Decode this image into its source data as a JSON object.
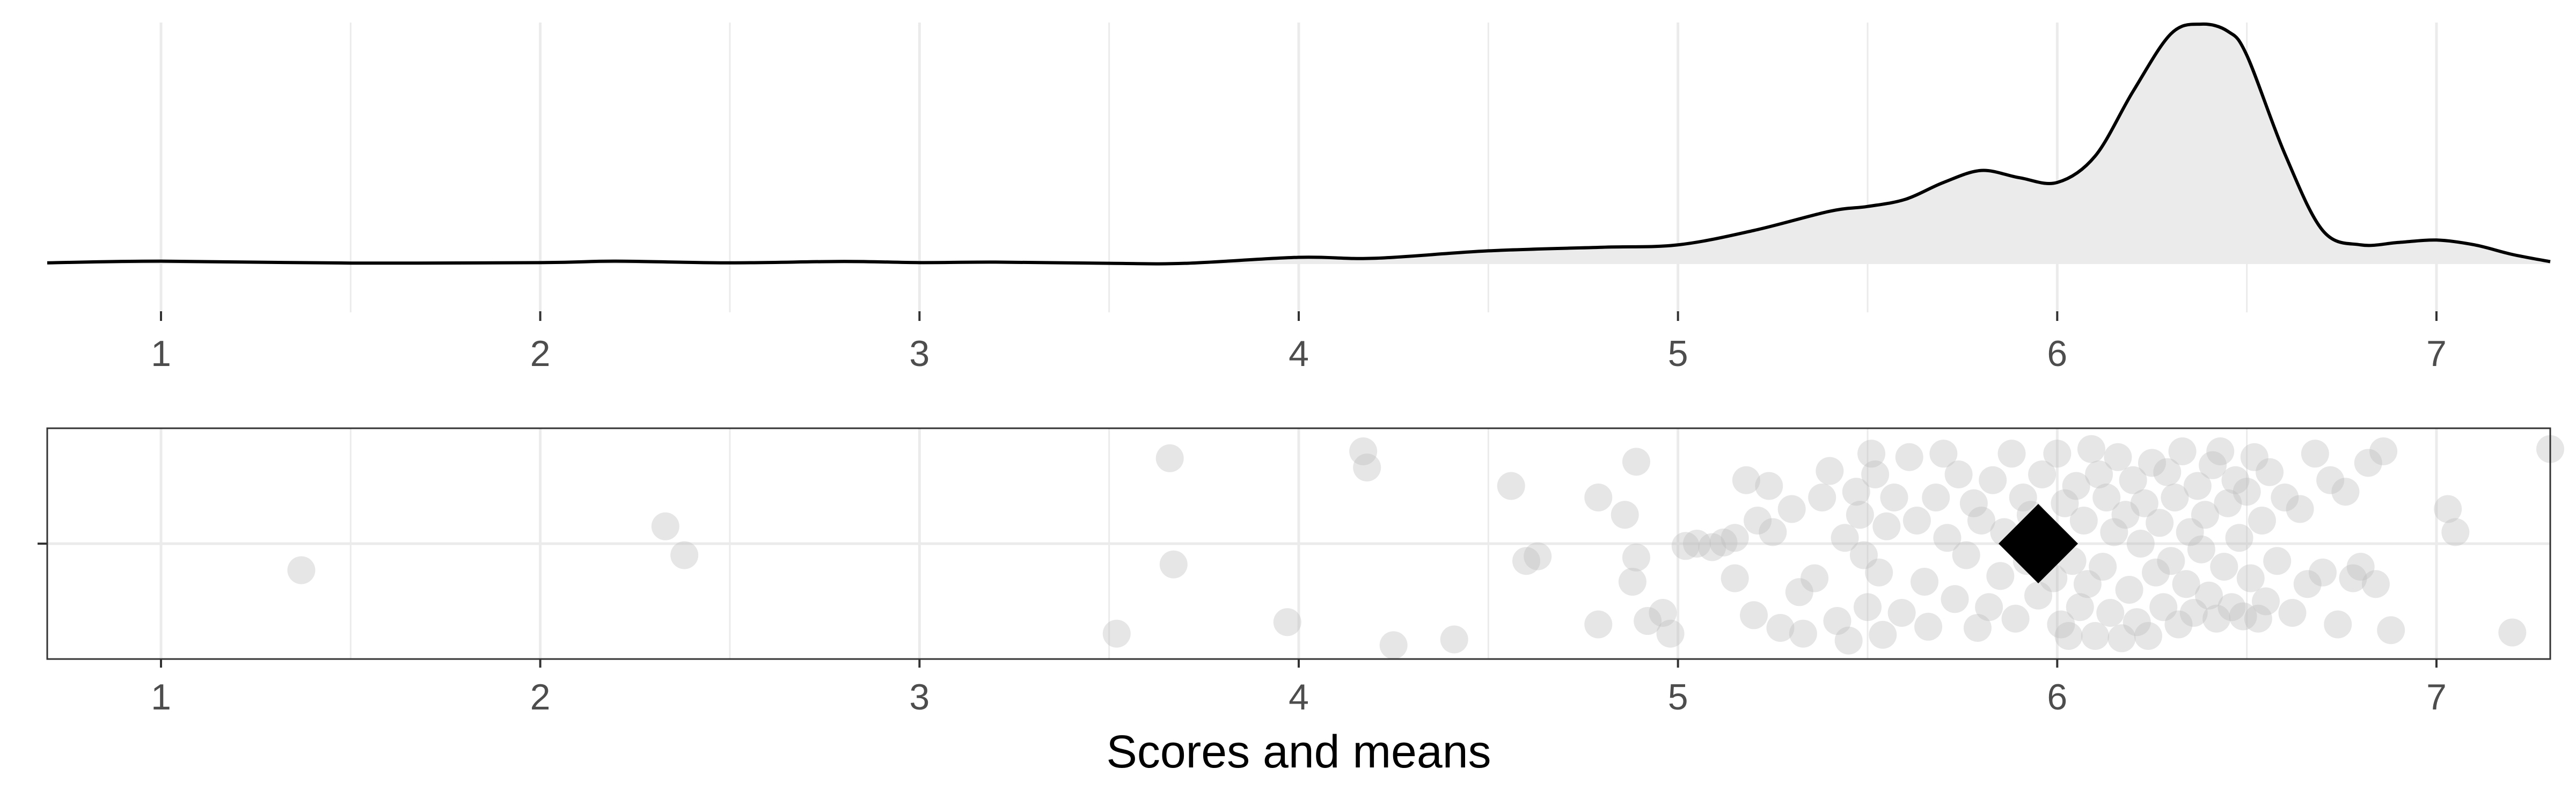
{
  "chart_data": [
    {
      "type": "area",
      "panel": "density",
      "xlim": [
        0.7,
        7.3
      ],
      "x_ticks": [
        1,
        2,
        3,
        4,
        5,
        6,
        7
      ],
      "grid": true,
      "fill_color": "#ebebeb",
      "line_color": "#000000",
      "density": {
        "x": [
          0.7,
          1.0,
          1.5,
          2.0,
          2.2,
          2.5,
          2.8,
          3.0,
          3.2,
          3.5,
          3.7,
          4.0,
          4.2,
          4.5,
          4.8,
          5.0,
          5.2,
          5.4,
          5.5,
          5.6,
          5.7,
          5.8,
          5.9,
          6.0,
          6.1,
          6.2,
          6.3,
          6.38,
          6.45,
          6.5,
          6.6,
          6.7,
          6.8,
          6.9,
          7.0,
          7.1,
          7.2,
          7.3
        ],
        "y": [
          0.005,
          0.012,
          0.004,
          0.006,
          0.012,
          0.005,
          0.011,
          0.006,
          0.008,
          0.003,
          0.003,
          0.028,
          0.024,
          0.055,
          0.07,
          0.08,
          0.14,
          0.22,
          0.24,
          0.27,
          0.34,
          0.39,
          0.36,
          0.34,
          0.45,
          0.72,
          0.96,
          1.0,
          0.97,
          0.87,
          0.46,
          0.14,
          0.08,
          0.09,
          0.1,
          0.08,
          0.04,
          0.01
        ],
        "y_max": 1.0
      }
    },
    {
      "type": "scatter",
      "panel": "jitter",
      "xlabel": "Scores and means",
      "xlim": [
        0.7,
        7.3
      ],
      "x_ticks": [
        1,
        2,
        3,
        4,
        5,
        6,
        7
      ],
      "y_ticks": [
        0
      ],
      "ylim": [
        -1,
        1
      ],
      "grid": true,
      "point_color": "#bdbdbd",
      "mean_color": "#000000",
      "mean": {
        "x": 5.95,
        "y": 0
      },
      "points": [
        {
          "x": 1.37,
          "y": -0.23
        },
        {
          "x": 2.33,
          "y": 0.15
        },
        {
          "x": 2.38,
          "y": -0.1
        },
        {
          "x": 3.52,
          "y": -0.78
        },
        {
          "x": 3.66,
          "y": 0.74
        },
        {
          "x": 3.67,
          "y": -0.18
        },
        {
          "x": 3.97,
          "y": -0.68
        },
        {
          "x": 4.17,
          "y": 0.8
        },
        {
          "x": 4.18,
          "y": 0.66
        },
        {
          "x": 4.25,
          "y": -0.88
        },
        {
          "x": 4.41,
          "y": -0.83
        },
        {
          "x": 4.56,
          "y": 0.5
        },
        {
          "x": 4.6,
          "y": -0.15
        },
        {
          "x": 4.63,
          "y": -0.11
        },
        {
          "x": 4.79,
          "y": -0.7
        },
        {
          "x": 4.79,
          "y": 0.4
        },
        {
          "x": 4.86,
          "y": 0.25
        },
        {
          "x": 4.88,
          "y": -0.33
        },
        {
          "x": 4.89,
          "y": 0.71
        },
        {
          "x": 4.89,
          "y": -0.12
        },
        {
          "x": 4.92,
          "y": -0.67
        },
        {
          "x": 4.96,
          "y": -0.6
        },
        {
          "x": 4.98,
          "y": -0.78
        },
        {
          "x": 5.02,
          "y": -0.02
        },
        {
          "x": 5.05,
          "y": 0.0
        },
        {
          "x": 5.09,
          "y": -0.03
        },
        {
          "x": 5.12,
          "y": 0.01
        },
        {
          "x": 5.15,
          "y": 0.05
        },
        {
          "x": 5.15,
          "y": -0.3
        },
        {
          "x": 5.18,
          "y": 0.55
        },
        {
          "x": 5.2,
          "y": -0.62
        },
        {
          "x": 5.21,
          "y": 0.2
        },
        {
          "x": 5.24,
          "y": 0.5
        },
        {
          "x": 5.25,
          "y": 0.1
        },
        {
          "x": 5.27,
          "y": -0.73
        },
        {
          "x": 5.3,
          "y": 0.3
        },
        {
          "x": 5.32,
          "y": -0.42
        },
        {
          "x": 5.33,
          "y": -0.78
        },
        {
          "x": 5.36,
          "y": -0.3
        },
        {
          "x": 5.38,
          "y": 0.4
        },
        {
          "x": 5.4,
          "y": 0.63
        },
        {
          "x": 5.42,
          "y": -0.67
        },
        {
          "x": 5.44,
          "y": 0.05
        },
        {
          "x": 5.45,
          "y": -0.84
        },
        {
          "x": 5.47,
          "y": 0.45
        },
        {
          "x": 5.48,
          "y": 0.25
        },
        {
          "x": 5.49,
          "y": -0.1
        },
        {
          "x": 5.5,
          "y": -0.55
        },
        {
          "x": 5.51,
          "y": 0.78
        },
        {
          "x": 5.52,
          "y": 0.6
        },
        {
          "x": 5.53,
          "y": -0.25
        },
        {
          "x": 5.54,
          "y": -0.79
        },
        {
          "x": 5.55,
          "y": 0.15
        },
        {
          "x": 5.57,
          "y": 0.4
        },
        {
          "x": 5.59,
          "y": -0.6
        },
        {
          "x": 5.61,
          "y": 0.75
        },
        {
          "x": 5.63,
          "y": 0.2
        },
        {
          "x": 5.65,
          "y": -0.33
        },
        {
          "x": 5.66,
          "y": -0.72
        },
        {
          "x": 5.68,
          "y": 0.4
        },
        {
          "x": 5.7,
          "y": 0.78
        },
        {
          "x": 5.71,
          "y": 0.05
        },
        {
          "x": 5.73,
          "y": -0.48
        },
        {
          "x": 5.74,
          "y": 0.6
        },
        {
          "x": 5.76,
          "y": -0.1
        },
        {
          "x": 5.78,
          "y": 0.35
        },
        {
          "x": 5.79,
          "y": -0.73
        },
        {
          "x": 5.8,
          "y": 0.2
        },
        {
          "x": 5.82,
          "y": -0.55
        },
        {
          "x": 5.83,
          "y": 0.55
        },
        {
          "x": 5.85,
          "y": -0.28
        },
        {
          "x": 5.86,
          "y": 0.1
        },
        {
          "x": 5.88,
          "y": 0.78
        },
        {
          "x": 5.89,
          "y": -0.65
        },
        {
          "x": 5.91,
          "y": 0.4
        },
        {
          "x": 5.92,
          "y": -0.15
        },
        {
          "x": 5.93,
          "y": 0.25
        },
        {
          "x": 5.95,
          "y": -0.45
        },
        {
          "x": 5.96,
          "y": 0.6
        },
        {
          "x": 5.97,
          "y": 0.05
        },
        {
          "x": 5.99,
          "y": -0.3
        },
        {
          "x": 6.0,
          "y": 0.78
        },
        {
          "x": 6.01,
          "y": -0.7
        },
        {
          "x": 6.02,
          "y": 0.35
        },
        {
          "x": 6.03,
          "y": -0.8
        },
        {
          "x": 6.04,
          "y": -0.15
        },
        {
          "x": 6.05,
          "y": 0.5
        },
        {
          "x": 6.06,
          "y": -0.55
        },
        {
          "x": 6.07,
          "y": 0.2
        },
        {
          "x": 6.08,
          "y": -0.35
        },
        {
          "x": 6.09,
          "y": 0.82
        },
        {
          "x": 6.1,
          "y": -0.8
        },
        {
          "x": 6.11,
          "y": 0.6
        },
        {
          "x": 6.12,
          "y": -0.2
        },
        {
          "x": 6.13,
          "y": 0.4
        },
        {
          "x": 6.14,
          "y": -0.6
        },
        {
          "x": 6.15,
          "y": 0.1
        },
        {
          "x": 6.16,
          "y": 0.75
        },
        {
          "x": 6.17,
          "y": -0.82
        },
        {
          "x": 6.18,
          "y": 0.25
        },
        {
          "x": 6.19,
          "y": -0.4
        },
        {
          "x": 6.2,
          "y": 0.55
        },
        {
          "x": 6.21,
          "y": -0.68
        },
        {
          "x": 6.22,
          "y": 0.0
        },
        {
          "x": 6.23,
          "y": 0.35
        },
        {
          "x": 6.24,
          "y": -0.8
        },
        {
          "x": 6.25,
          "y": 0.7
        },
        {
          "x": 6.26,
          "y": -0.25
        },
        {
          "x": 6.27,
          "y": 0.18
        },
        {
          "x": 6.28,
          "y": -0.55
        },
        {
          "x": 6.29,
          "y": 0.62
        },
        {
          "x": 6.3,
          "y": -0.15
        },
        {
          "x": 6.31,
          "y": 0.4
        },
        {
          "x": 6.32,
          "y": -0.7
        },
        {
          "x": 6.33,
          "y": 0.8
        },
        {
          "x": 6.34,
          "y": -0.35
        },
        {
          "x": 6.35,
          "y": 0.1
        },
        {
          "x": 6.36,
          "y": -0.6
        },
        {
          "x": 6.37,
          "y": 0.5
        },
        {
          "x": 6.38,
          "y": -0.05
        },
        {
          "x": 6.39,
          "y": 0.25
        },
        {
          "x": 6.4,
          "y": -0.45
        },
        {
          "x": 6.41,
          "y": 0.68
        },
        {
          "x": 6.42,
          "y": -0.65
        },
        {
          "x": 6.43,
          "y": 0.8
        },
        {
          "x": 6.44,
          "y": -0.2
        },
        {
          "x": 6.45,
          "y": 0.35
        },
        {
          "x": 6.46,
          "y": -0.55
        },
        {
          "x": 6.47,
          "y": 0.55
        },
        {
          "x": 6.48,
          "y": 0.05
        },
        {
          "x": 6.49,
          "y": -0.63
        },
        {
          "x": 6.5,
          "y": 0.45
        },
        {
          "x": 6.51,
          "y": -0.3
        },
        {
          "x": 6.52,
          "y": 0.75
        },
        {
          "x": 6.53,
          "y": -0.65
        },
        {
          "x": 6.54,
          "y": 0.2
        },
        {
          "x": 6.55,
          "y": -0.5
        },
        {
          "x": 6.56,
          "y": 0.62
        },
        {
          "x": 6.58,
          "y": -0.15
        },
        {
          "x": 6.6,
          "y": 0.4
        },
        {
          "x": 6.62,
          "y": -0.6
        },
        {
          "x": 6.64,
          "y": 0.3
        },
        {
          "x": 6.66,
          "y": -0.35
        },
        {
          "x": 6.68,
          "y": 0.78
        },
        {
          "x": 6.7,
          "y": -0.25
        },
        {
          "x": 6.72,
          "y": 0.55
        },
        {
          "x": 6.74,
          "y": -0.7
        },
        {
          "x": 6.76,
          "y": 0.45
        },
        {
          "x": 6.78,
          "y": -0.3
        },
        {
          "x": 6.8,
          "y": -0.2
        },
        {
          "x": 6.82,
          "y": 0.7
        },
        {
          "x": 6.84,
          "y": -0.35
        },
        {
          "x": 6.86,
          "y": 0.8
        },
        {
          "x": 6.88,
          "y": -0.75
        },
        {
          "x": 7.03,
          "y": 0.3
        },
        {
          "x": 7.05,
          "y": 0.1
        },
        {
          "x": 7.2,
          "y": -0.77
        },
        {
          "x": 7.3,
          "y": 0.82
        }
      ]
    }
  ]
}
